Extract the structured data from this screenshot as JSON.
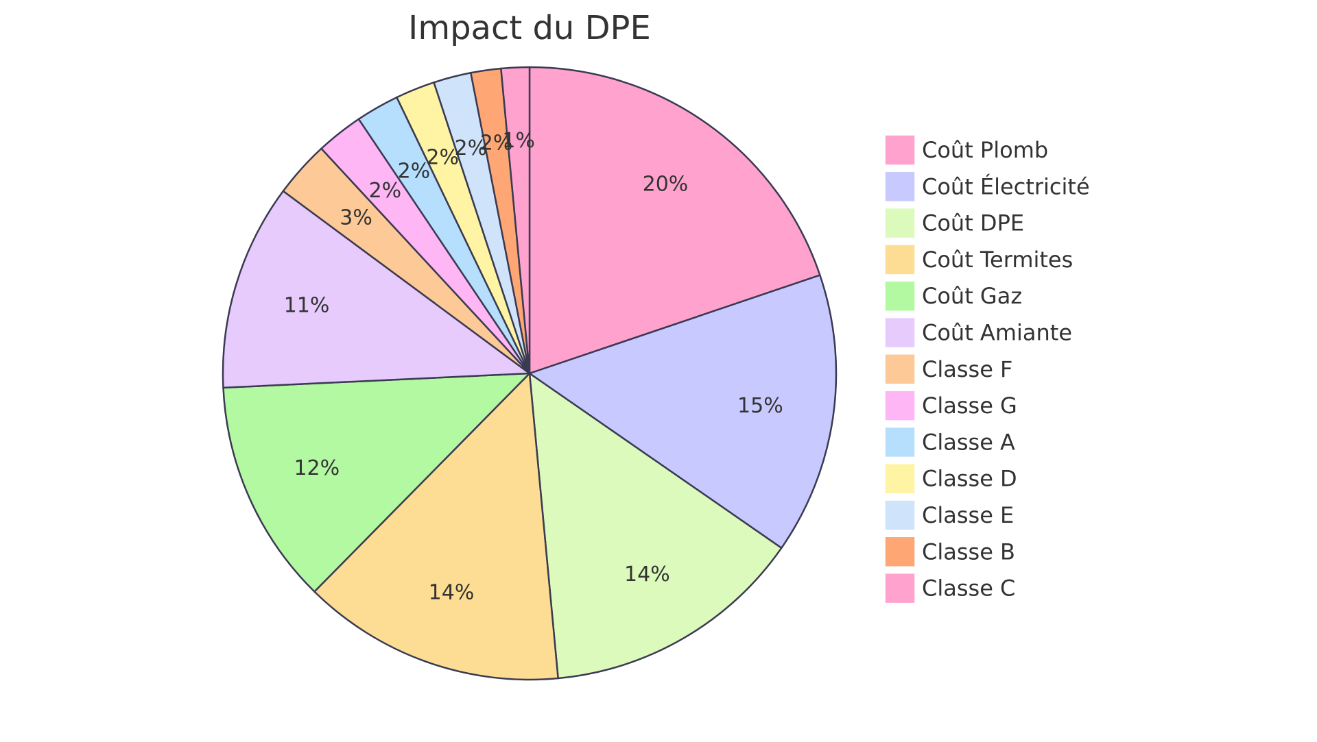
{
  "chart_data": {
    "type": "pie",
    "title": "Impact du DPE",
    "slices": [
      {
        "label": "Coût Plomb",
        "value": 20,
        "display": "20%",
        "color": "#ffa3ce"
      },
      {
        "label": "Coût Électricité",
        "value": 15,
        "display": "15%",
        "color": "#c8caff"
      },
      {
        "label": "Coût DPE",
        "value": 14,
        "display": "14%",
        "color": "#dcfabb"
      },
      {
        "label": "Coût Termites",
        "value": 14,
        "display": "14%",
        "color": "#fddd94"
      },
      {
        "label": "Coût Gaz",
        "value": 12,
        "display": "12%",
        "color": "#b3f9a1"
      },
      {
        "label": "Coût Amiante",
        "value": 11,
        "display": "11%",
        "color": "#e6cbfc"
      },
      {
        "label": "Classe F",
        "value": 3,
        "display": "3%",
        "color": "#fdc996"
      },
      {
        "label": "Classe G",
        "value": 2.5,
        "display": "2%",
        "color": "#ffb6f5"
      },
      {
        "label": "Classe A",
        "value": 2.3,
        "display": "2%",
        "color": "#b6dffd"
      },
      {
        "label": "Classe D",
        "value": 2.1,
        "display": "2%",
        "color": "#fff4a3"
      },
      {
        "label": "Classe E",
        "value": 2.0,
        "display": "2%",
        "color": "#cfe3fb"
      },
      {
        "label": "Classe B",
        "value": 1.6,
        "display": "2%",
        "color": "#fea775"
      },
      {
        "label": "Classe C",
        "value": 1.5,
        "display": "1%",
        "color": "#ffa3ce"
      }
    ],
    "legend_position": "right"
  }
}
